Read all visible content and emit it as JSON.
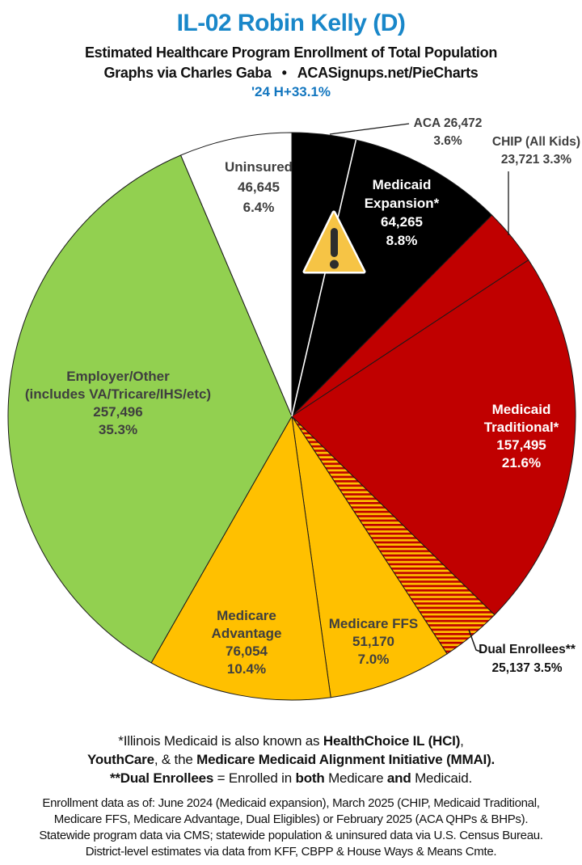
{
  "header": {
    "title": "IL-02 Robin Kelly (D)",
    "subtitle": "Estimated Healthcare Program Enrollment of Total Population",
    "credit_left": "Graphs via Charles Gaba",
    "credit_sep": "•",
    "credit_right": "ACASignups.net/PieCharts",
    "tagline": "'24 H+33.1%"
  },
  "colors": {
    "title_blue": "#1987c9",
    "tagline_blue": "#1276bf",
    "label_gray": "#3f3f3f",
    "slice_border": "#1a1a1a",
    "warning_fill": "#f6c445",
    "warning_stroke": "#ffffff",
    "warning_glyph": "#2d2d2d"
  },
  "chart_data": {
    "type": "pie",
    "start_angle": "12 o'clock",
    "direction": "clockwise",
    "border_color": "#1a1a1a",
    "hatch_colors": [
      "#c00000",
      "#ffc000"
    ],
    "slices": [
      {
        "id": "aca",
        "name": "ACA",
        "value": 26472,
        "value_text": "26,472",
        "pct": 3.6,
        "pct_text": "3.6%",
        "color": "#000000"
      },
      {
        "id": "medicaid-expansion",
        "name": "Medicaid Expansion*",
        "name_l1": "Medicaid",
        "name_l2": "Expansion*",
        "value": 64265,
        "value_text": "64,265",
        "pct": 8.8,
        "pct_text": "8.8%",
        "color": "#000000"
      },
      {
        "id": "chip",
        "name": "CHIP (All Kids)",
        "value": 23721,
        "value_text": "23,721",
        "pct": 3.3,
        "pct_text": "3.3%",
        "color": "#c00000"
      },
      {
        "id": "medicaid-traditional",
        "name": "Medicaid Traditional*",
        "name_l1": "Medicaid",
        "name_l2": "Traditional*",
        "value": 157495,
        "value_text": "157,495",
        "pct": 21.6,
        "pct_text": "21.6%",
        "color": "#c00000"
      },
      {
        "id": "dual-enrollees",
        "name": "Dual Enrollees**",
        "value": 25137,
        "value_text": "25,137",
        "pct": 3.5,
        "pct_text": "3.5%",
        "color": "hatch"
      },
      {
        "id": "medicare-ffs",
        "name": "Medicare FFS",
        "value": 51170,
        "value_text": "51,170",
        "pct": 7.0,
        "pct_text": "7.0%",
        "color": "#ffc000"
      },
      {
        "id": "medicare-advantage",
        "name": "Medicare Advantage",
        "name_l1": "Medicare",
        "name_l2": "Advantage",
        "value": 76054,
        "value_text": "76,054",
        "pct": 10.4,
        "pct_text": "10.4%",
        "color": "#ffc000"
      },
      {
        "id": "employer-other",
        "name": "Employer/Other (includes VA/Tricare/IHS/etc)",
        "name_l1": "Employer/Other",
        "name_l2": "(includes VA/Tricare/IHS/etc)",
        "value": 257496,
        "value_text": "257,496",
        "pct": 35.3,
        "pct_text": "35.3%",
        "color": "#92d050"
      },
      {
        "id": "uninsured",
        "name": "Uninsured",
        "value": 46645,
        "value_text": "46,645",
        "pct": 6.4,
        "pct_text": "6.4%",
        "color": "#ffffff"
      }
    ]
  },
  "notes": {
    "line1": {
      "pre": "*Illinois Medicaid is also known as ",
      "bold": "HealthChoice IL (HCI)",
      "post": ","
    },
    "line2": {
      "bold1": "YouthCare",
      "mid": ", & the ",
      "bold2": "Medicare Medicaid Alignment Initiative (MMAI)."
    },
    "line3": {
      "bold1": "**Dual Enrollees",
      "mid1": " = Enrolled in ",
      "bold2": "both",
      "mid2": " Medicare ",
      "bold3": "and",
      "post": " Medicaid."
    }
  },
  "sources": {
    "line1": "Enrollment data as of: June 2024 (Medicaid expansion), March 2025 (CHIP, Medicaid Traditional,",
    "line2": "Medicare FFS, Medicare Advantage, Dual Eligibles) or February 2025 (ACA QHPs & BHPs).",
    "line3": "Statewide program data via CMS; statewide population & uninsured data via U.S. Census Bureau.",
    "line4": "District-level estimates via data from KFF, CBPP & House Ways & Means Cmte."
  }
}
